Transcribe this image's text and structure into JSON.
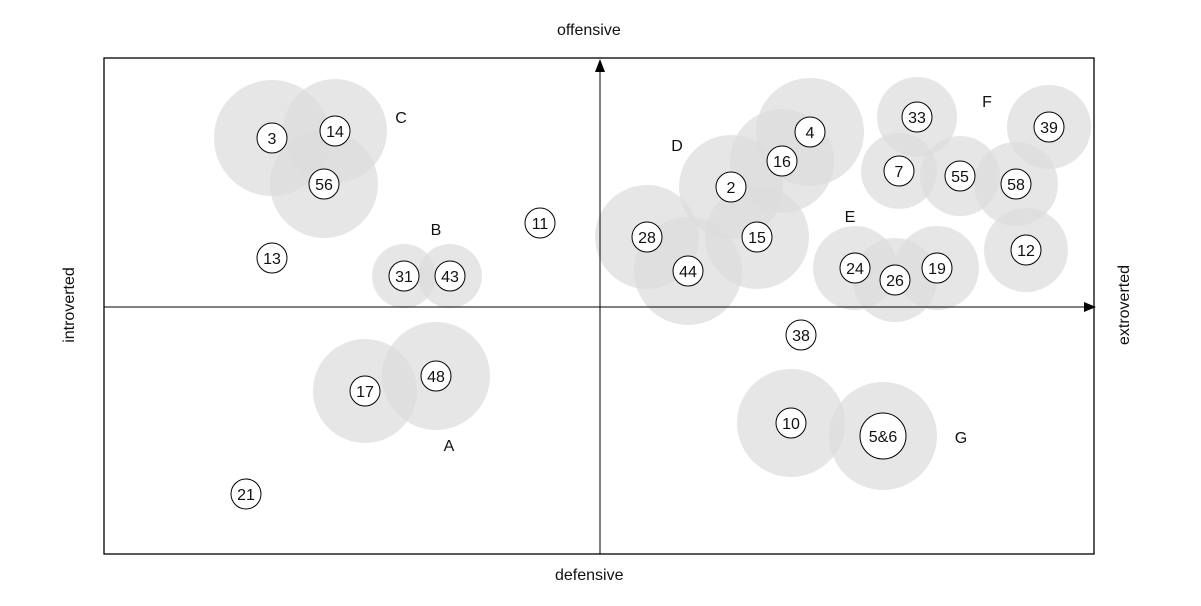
{
  "axes": {
    "top": "offensive",
    "bottom": "defensive",
    "left": "introverted",
    "right": "extroverted"
  },
  "groups": [
    {
      "label": "A"
    },
    {
      "label": "B"
    },
    {
      "label": "C"
    },
    {
      "label": "D"
    },
    {
      "label": "E"
    },
    {
      "label": "F"
    },
    {
      "label": "G"
    }
  ],
  "nodes": [
    {
      "label": "3"
    },
    {
      "label": "14"
    },
    {
      "label": "56"
    },
    {
      "label": "13"
    },
    {
      "label": "31"
    },
    {
      "label": "43"
    },
    {
      "label": "11"
    },
    {
      "label": "17"
    },
    {
      "label": "48"
    },
    {
      "label": "21"
    },
    {
      "label": "28"
    },
    {
      "label": "44"
    },
    {
      "label": "2"
    },
    {
      "label": "15"
    },
    {
      "label": "16"
    },
    {
      "label": "4"
    },
    {
      "label": "24"
    },
    {
      "label": "26"
    },
    {
      "label": "19"
    },
    {
      "label": "33"
    },
    {
      "label": "7"
    },
    {
      "label": "55"
    },
    {
      "label": "58"
    },
    {
      "label": "39"
    },
    {
      "label": "12"
    },
    {
      "label": "38"
    },
    {
      "label": "10"
    },
    {
      "label": "5&6"
    }
  ]
}
